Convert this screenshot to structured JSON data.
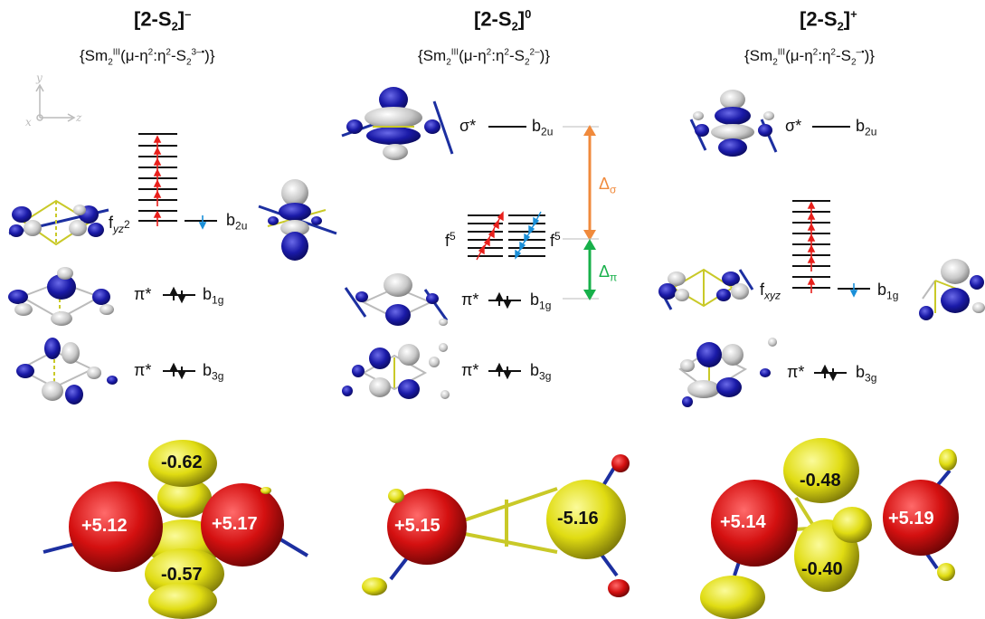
{
  "columns": [
    {
      "title_main": "[2-S",
      "title_sub": "2",
      "title_close": "]",
      "title_sup": "–",
      "formula_pre": "{Sm",
      "formula_sub": "2",
      "formula_sup": "III",
      "formula_mid": "(μ-η",
      "formula_eta1": "2",
      "formula_colon": ":η",
      "formula_eta2": "2",
      "formula_s": "-S",
      "formula_ssub": "2",
      "formula_ssup": "3–•",
      "formula_end": ")}"
    },
    {
      "title_main": "[2-S",
      "title_sub": "2",
      "title_close": "]",
      "title_sup": "0",
      "formula_pre": "{Sm",
      "formula_sub": "2",
      "formula_sup": "III",
      "formula_mid": "(μ-η",
      "formula_eta1": "2",
      "formula_colon": ":η",
      "formula_eta2": "2",
      "formula_s": "-S",
      "formula_ssub": "2",
      "formula_ssup": "2–",
      "formula_end": ")}"
    },
    {
      "title_main": "[2-S",
      "title_sub": "2",
      "title_close": "]",
      "title_sup": "+",
      "formula_pre": "{Sm",
      "formula_sub": "2",
      "formula_sup": "III",
      "formula_mid": "(μ-η",
      "formula_eta1": "2",
      "formula_colon": ":η",
      "formula_eta2": "2",
      "formula_s": "-S",
      "formula_ssub": "2",
      "formula_ssup": "–•",
      "formula_end": ")}"
    }
  ],
  "axes": {
    "y": "y",
    "x": "x",
    "z": "z"
  },
  "levels": {
    "f_yz2": {
      "base": "f",
      "sub": "yz",
      "sup": "2"
    },
    "b2u": {
      "base": "b",
      "sub": "2u"
    },
    "pi_star": "π*",
    "sigma_star": "σ*",
    "b1g": {
      "base": "b",
      "sub": "1g"
    },
    "b3g": {
      "base": "b",
      "sub": "3g"
    },
    "f5": {
      "base": "f",
      "sup": "5"
    },
    "f_xyz": {
      "base": "f",
      "sub": "xyz"
    },
    "delta_sigma": {
      "base": "Δ",
      "sub": "σ"
    },
    "delta_pi": {
      "base": "Δ",
      "sub": "π"
    }
  },
  "spin_densities": {
    "left": [
      "-0.62",
      "+5.12",
      "+5.17",
      "-0.57"
    ],
    "middle": [
      "+5.15",
      "-5.16"
    ],
    "right": [
      "-0.48",
      "+5.14",
      "+5.19",
      "-0.40"
    ]
  },
  "colors": {
    "orbital_positive": "#1a1aa8",
    "orbital_negative": "#c8c8c8",
    "spin_alpha": "#e8201c",
    "spin_beta": "#1a8fd8",
    "spin_density_positive": "#d41010",
    "spin_density_negative": "#e6e21a",
    "delta_sigma": "#f08a3c",
    "delta_pi": "#17b04a",
    "bond": "#c9c928",
    "ligand": "#1c2fa0"
  }
}
